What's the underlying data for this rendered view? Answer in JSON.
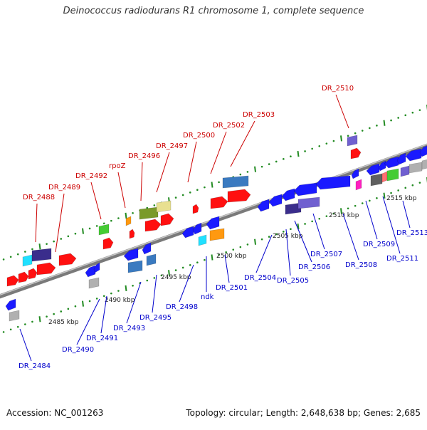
{
  "map": {
    "title": "Deinococcus radiodurans R1 chromosome 1, complete sequence",
    "accession": "Accession: NC_001263",
    "topology": "Topology: circular; Length: 2,648,638 bp; Genes: 2,685"
  },
  "colors": {
    "backbone": "#8a8a8a",
    "tick": "#228b22",
    "label_forward": "#cc0000",
    "label_reverse": "#0000cc",
    "gene_red": "#ff1010",
    "gene_blue": "#1a1aff",
    "gene_navy": "#3a2d8c",
    "gene_cyan": "#20e0ff",
    "gene_green": "#44cc33",
    "gene_olive": "#7a9a2a",
    "gene_khaki": "#e8e090",
    "gene_orange": "#ff9910",
    "gene_steel": "#3a7ac0",
    "gene_gray": "#b0b0b0",
    "gene_purple": "#7060d0",
    "gene_magenta": "#ff20c0",
    "gene_dimgray": "#606060",
    "gene_salmon": "#ff7070"
  },
  "scale_labels": [
    "2485 kbp",
    "2490 kbp",
    "2495 kbp",
    "2500 kbp",
    "2505 kbp",
    "2510 kbp",
    "2515 kbp"
  ],
  "forward_labels": [
    "DR_2488",
    "DR_2489",
    "DR_2492",
    "rpoZ",
    "DR_2496",
    "DR_2497",
    "DR_2500",
    "DR_2502",
    "DR_2503",
    "DR_2510"
  ],
  "reverse_labels": [
    "DR_2484",
    "DR_2490",
    "DR_2491",
    "DR_2493",
    "DR_2495",
    "DR_2498",
    "ndk",
    "DR_2501",
    "DR_2504",
    "DR_2505",
    "DR_2506",
    "DR_2507",
    "DR_2508",
    "DR_2509",
    "DR_2511",
    "DR_2513"
  ]
}
